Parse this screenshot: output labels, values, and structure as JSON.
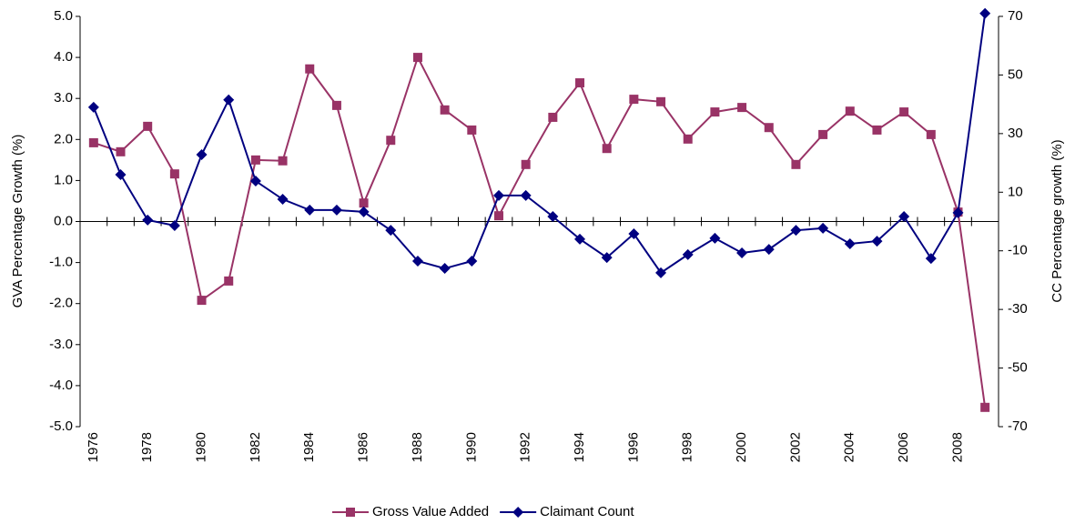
{
  "chart_data": {
    "type": "line",
    "y_label": "GVA Percentage Growth (%)",
    "y2_label": "CC Percentage growth (%)",
    "categories": [
      "1976",
      null,
      "1978",
      null,
      "1980",
      null,
      "1982",
      null,
      "1984",
      null,
      "1986",
      null,
      "1988",
      null,
      "1990",
      null,
      "1992",
      null,
      "1994",
      null,
      "1996",
      null,
      "1998",
      null,
      "2000",
      null,
      "2002",
      null,
      "2004",
      null,
      "2006",
      null,
      "2008",
      null
    ],
    "series": [
      {
        "name": "Gross Value Added",
        "color": "#993366",
        "marker": "square",
        "values": [
          1.92,
          1.7,
          2.32,
          1.16,
          -1.92,
          -1.45,
          1.5,
          1.48,
          3.72,
          2.83,
          0.45,
          1.98,
          4.0,
          2.72,
          2.23,
          0.14,
          1.39,
          2.54,
          3.38,
          1.78,
          2.98,
          2.92,
          2.01,
          2.67,
          2.78,
          2.29,
          1.39,
          2.12,
          2.69,
          2.23,
          2.67,
          2.12,
          0.23,
          -4.53
        ]
      },
      {
        "name": "Claimant Count",
        "color": "#000080",
        "marker": "diamond",
        "axis": "y2",
        "values": [
          39,
          16,
          0.5,
          -1.4,
          22.8,
          41.5,
          13.8,
          7.6,
          3.9,
          3.9,
          3.3,
          -3,
          -13.5,
          -16,
          -13.5,
          8.9,
          8.9,
          1.7,
          -6,
          -12.3,
          -4.2,
          -17.5,
          -11.3,
          -5.7,
          -10.7,
          -9.5,
          -3,
          -2.3,
          -7.6,
          -6.7,
          1.7,
          -12.6,
          3,
          71
        ]
      }
    ],
    "ylim": [
      -5,
      5
    ],
    "yticks": [
      {
        "value": 5,
        "label": "5.0"
      },
      {
        "value": 4,
        "label": "4.0"
      },
      {
        "value": 3,
        "label": "3.0"
      },
      {
        "value": 2,
        "label": "2.0"
      },
      {
        "value": 1,
        "label": "1.0"
      },
      {
        "value": 0,
        "label": "0.0"
      },
      {
        "value": -1,
        "label": "-1.0"
      },
      {
        "value": -2,
        "label": "-2.0"
      },
      {
        "value": -3,
        "label": "-3.0"
      },
      {
        "value": -4,
        "label": "-4.0"
      },
      {
        "value": -5,
        "label": "-5.0"
      }
    ],
    "y2lim": [
      -70,
      70
    ],
    "y2ticks": [
      70,
      50,
      30,
      10,
      -10,
      -30,
      -50,
      -70
    ],
    "legend": "bottom"
  }
}
